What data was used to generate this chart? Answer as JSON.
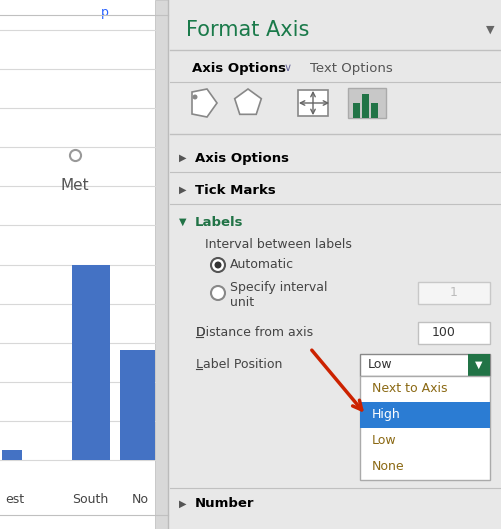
{
  "bg_color": "#e8e8e8",
  "left_panel_bg": "#ffffff",
  "title": "Format Axis",
  "title_color": "#1a7a4a",
  "title_fontsize": 15,
  "axis_options_text": "Axis Options",
  "text_options_text": "Text Options",
  "labels_color": "#217346",
  "interval_label": "Interval between labels",
  "automatic_text": "Automatic",
  "specify_line1": "Specify interval",
  "specify_line2": "unit",
  "distance_text": "Distance from axis",
  "distance_value": "100",
  "label_position_text": "Label Position",
  "dropdown_value": "Low",
  "dropdown_items": [
    "Next to Axis",
    "High",
    "Low",
    "None"
  ],
  "highlight_item": "High",
  "highlight_color": "#2b7cd3",
  "highlight_text_color": "#ffffff",
  "next_to_axis_color": "#8b6914",
  "low_color": "#8b6914",
  "none_color": "#8b6914",
  "arrow_color": "#cc2200",
  "bar_color": "#4472c4",
  "chart_labels": [
    "est",
    "South",
    "No"
  ],
  "chart_label_met": "Met",
  "separator_color": "#c0c0c0",
  "scrollbar_color": "#d8d8d8",
  "icon_bg_color": "#c8c8c8",
  "icon_bar_color": "#217346",
  "dropdown_arrow_bg": "#217346"
}
